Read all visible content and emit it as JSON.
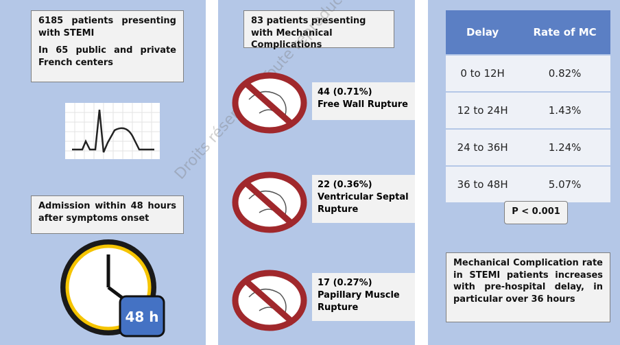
{
  "panels": [
    {
      "boxes": [
        {
          "lines": [
            "6185 patients presenting with STEMI",
            "In 65 public and private French centers"
          ]
        },
        {
          "lines": [
            "Admission within 48 hours after symptoms onset"
          ]
        }
      ],
      "badge": "48 h"
    },
    {
      "header": "83 patients presenting with Mechanical Complications",
      "items": [
        {
          "count": "44 (0.71%)",
          "label": "Free Wall Rupture"
        },
        {
          "count": "22 (0.36%)",
          "label": "Ventricular Septal Rupture"
        },
        {
          "count": "17 (0.27%)",
          "label": "Papillary Muscle Rupture"
        }
      ]
    },
    {
      "table": {
        "header": [
          "Delay",
          "Rate of MC"
        ],
        "rows": [
          [
            "0 to 12H",
            "0.82%"
          ],
          [
            "12 to 24H",
            "1.43%"
          ],
          [
            "24 to 36H",
            "1.24%"
          ],
          [
            "36 to 48H",
            "5.07%"
          ]
        ]
      },
      "pvalue": "P < 0.001",
      "conclusion": "Mechanical Complication rate in STEMI patients increases with pre-hospital delay, in particular over 36 hours"
    }
  ],
  "watermark": "Droits réservés - Toute reproduction même partielle est interdite"
}
